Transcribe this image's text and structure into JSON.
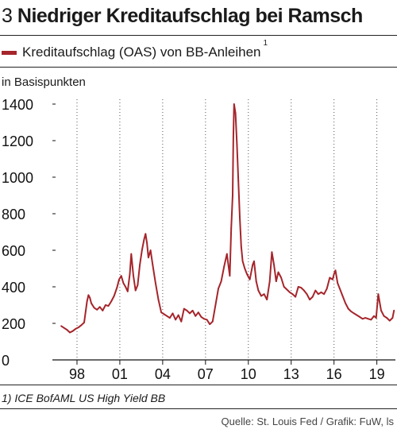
{
  "header": {
    "number": "3",
    "title": "Niedriger Kreditaufschlag bei Ramsch"
  },
  "legend": {
    "label": "Kreditaufschlag (OAS) von BB-Anleihen",
    "footnote_mark": "1"
  },
  "footnote": {
    "mark": "1)",
    "text": "ICE BofAML US High Yield BB"
  },
  "source": "Quelle: St. Louis Fed / Grafik: FuW, ls",
  "colors": {
    "series": "#a5252b",
    "grid": "#555555",
    "axis": "#111111"
  },
  "chart_data": {
    "type": "line",
    "ylabel": "in Basispunkten",
    "ylim": [
      0,
      1400
    ],
    "yticks": [
      0,
      200,
      400,
      600,
      800,
      1000,
      1200,
      1400
    ],
    "xlim": [
      1996.5,
      2020.3
    ],
    "xticks": [
      {
        "value": 1998,
        "label": "98"
      },
      {
        "value": 2001,
        "label": "01"
      },
      {
        "value": 2004,
        "label": "04"
      },
      {
        "value": 2007,
        "label": "07"
      },
      {
        "value": 2010,
        "label": "10"
      },
      {
        "value": 2013,
        "label": "13"
      },
      {
        "value": 2016,
        "label": "16"
      },
      {
        "value": 2019,
        "label": "19"
      }
    ],
    "grid": "vertical dotted",
    "series": [
      {
        "name": "Kreditaufschlag (OAS) von BB-Anleihen",
        "x": [
          1996.9,
          1997.1,
          1997.3,
          1997.5,
          1997.7,
          1997.9,
          1998.1,
          1998.3,
          1998.5,
          1998.7,
          1998.8,
          1998.9,
          1999.0,
          1999.2,
          1999.4,
          1999.6,
          1999.8,
          2000.0,
          2000.2,
          2000.4,
          2000.6,
          2000.8,
          2000.95,
          2001.1,
          2001.25,
          2001.4,
          2001.55,
          2001.7,
          2001.8,
          2001.95,
          2002.1,
          2002.25,
          2002.4,
          2002.55,
          2002.7,
          2002.8,
          2002.9,
          2003.0,
          2003.15,
          2003.3,
          2003.5,
          2003.7,
          2003.9,
          2004.1,
          2004.3,
          2004.5,
          2004.7,
          2004.9,
          2005.1,
          2005.3,
          2005.5,
          2005.7,
          2005.9,
          2006.1,
          2006.3,
          2006.5,
          2006.7,
          2006.9,
          2007.1,
          2007.3,
          2007.5,
          2007.7,
          2007.9,
          2008.1,
          2008.3,
          2008.5,
          2008.7,
          2008.8,
          2008.9,
          2008.95,
          2009.0,
          2009.1,
          2009.2,
          2009.3,
          2009.4,
          2009.5,
          2009.6,
          2009.75,
          2009.9,
          2010.1,
          2010.3,
          2010.4,
          2010.55,
          2010.7,
          2010.9,
          2011.1,
          2011.3,
          2011.5,
          2011.65,
          2011.8,
          2011.95,
          2012.1,
          2012.3,
          2012.5,
          2012.7,
          2012.9,
          2013.1,
          2013.3,
          2013.5,
          2013.7,
          2013.9,
          2014.1,
          2014.3,
          2014.5,
          2014.7,
          2014.9,
          2015.1,
          2015.3,
          2015.5,
          2015.7,
          2015.9,
          2016.0,
          2016.1,
          2016.25,
          2016.4,
          2016.6,
          2016.8,
          2017.0,
          2017.2,
          2017.4,
          2017.6,
          2017.8,
          2018.0,
          2018.2,
          2018.4,
          2018.6,
          2018.8,
          2018.95,
          2019.1,
          2019.3,
          2019.5,
          2019.7,
          2019.9,
          2020.1,
          2020.2
        ],
        "values": [
          185,
          175,
          165,
          150,
          158,
          170,
          178,
          190,
          205,
          320,
          355,
          340,
          310,
          285,
          275,
          290,
          270,
          300,
          295,
          320,
          350,
          395,
          440,
          460,
          420,
          400,
          375,
          470,
          580,
          460,
          380,
          410,
          520,
          600,
          660,
          690,
          640,
          560,
          600,
          520,
          420,
          330,
          260,
          250,
          240,
          230,
          255,
          220,
          245,
          210,
          280,
          270,
          255,
          270,
          240,
          260,
          235,
          225,
          220,
          195,
          210,
          300,
          390,
          430,
          510,
          580,
          460,
          720,
          900,
          1220,
          1400,
          1350,
          1180,
          980,
          780,
          620,
          540,
          500,
          470,
          440,
          520,
          540,
          430,
          380,
          350,
          360,
          330,
          430,
          590,
          520,
          430,
          480,
          450,
          400,
          385,
          370,
          360,
          345,
          400,
          395,
          380,
          360,
          330,
          345,
          380,
          360,
          370,
          360,
          390,
          450,
          440,
          470,
          490,
          420,
          390,
          350,
          310,
          280,
          265,
          255,
          245,
          235,
          225,
          230,
          225,
          220,
          240,
          230,
          360,
          270,
          240,
          230,
          215,
          230,
          270
        ]
      }
    ]
  }
}
